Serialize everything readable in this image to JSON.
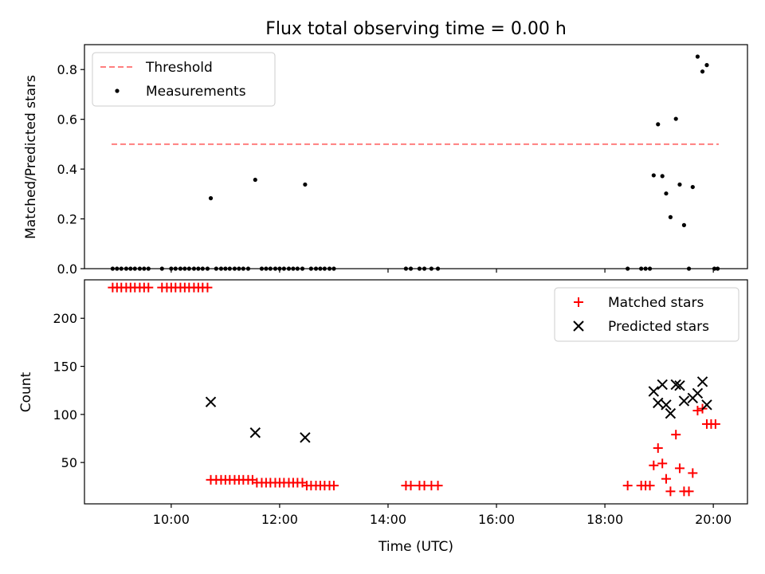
{
  "chart_data": [
    {
      "type": "scatter",
      "title": "Flux total observing time = 0.00 h",
      "xlabel": "",
      "ylabel": "Matched/Predicted stars",
      "xlim": [
        8.4,
        20.63
      ],
      "ylim": [
        0,
        0.9
      ],
      "yticks": [
        0.0,
        0.2,
        0.4,
        0.6,
        0.8
      ],
      "ytick_labels": [
        "0.0",
        "0.2",
        "0.4",
        "0.6",
        "0.8"
      ],
      "legend_position": "top-left",
      "legend": [
        "Threshold",
        "Measurements"
      ],
      "threshold": {
        "name": "Threshold",
        "value": 0.5,
        "x_range": [
          8.9,
          20.1
        ],
        "color": "#ff7f7f",
        "style": "dashed"
      },
      "series": [
        {
          "name": "Measurements",
          "color": "#000000",
          "marker": "dot",
          "points": [
            [
              8.92,
              0
            ],
            [
              9.0,
              0
            ],
            [
              9.08,
              0
            ],
            [
              9.17,
              0
            ],
            [
              9.25,
              0
            ],
            [
              9.33,
              0
            ],
            [
              9.42,
              0
            ],
            [
              9.5,
              0
            ],
            [
              9.58,
              0
            ],
            [
              9.83,
              0
            ],
            [
              10.0,
              0
            ],
            [
              10.08,
              0
            ],
            [
              10.17,
              0
            ],
            [
              10.25,
              0
            ],
            [
              10.33,
              0
            ],
            [
              10.42,
              0
            ],
            [
              10.5,
              0
            ],
            [
              10.58,
              0
            ],
            [
              10.67,
              0
            ],
            [
              10.73,
              0.283
            ],
            [
              10.83,
              0
            ],
            [
              10.92,
              0
            ],
            [
              11.0,
              0
            ],
            [
              11.08,
              0
            ],
            [
              11.17,
              0
            ],
            [
              11.25,
              0
            ],
            [
              11.33,
              0
            ],
            [
              11.42,
              0
            ],
            [
              11.55,
              0.357
            ],
            [
              11.67,
              0
            ],
            [
              11.75,
              0
            ],
            [
              11.83,
              0
            ],
            [
              11.92,
              0
            ],
            [
              12.0,
              0
            ],
            [
              12.08,
              0
            ],
            [
              12.17,
              0
            ],
            [
              12.25,
              0
            ],
            [
              12.33,
              0
            ],
            [
              12.42,
              0
            ],
            [
              12.47,
              0.338
            ],
            [
              12.58,
              0
            ],
            [
              12.67,
              0
            ],
            [
              12.75,
              0
            ],
            [
              12.83,
              0
            ],
            [
              12.92,
              0
            ],
            [
              13.0,
              0
            ],
            [
              14.33,
              0
            ],
            [
              14.42,
              0
            ],
            [
              14.58,
              0
            ],
            [
              14.67,
              0
            ],
            [
              14.8,
              0
            ],
            [
              14.92,
              0
            ],
            [
              18.42,
              0
            ],
            [
              18.67,
              0
            ],
            [
              18.75,
              0
            ],
            [
              18.83,
              0
            ],
            [
              18.9,
              0.375
            ],
            [
              18.98,
              0.58
            ],
            [
              19.06,
              0.372
            ],
            [
              19.13,
              0.302
            ],
            [
              19.21,
              0.207
            ],
            [
              19.31,
              0.602
            ],
            [
              19.38,
              0.338
            ],
            [
              19.46,
              0.175
            ],
            [
              19.55,
              0.0
            ],
            [
              19.62,
              0.328
            ],
            [
              19.71,
              0.852
            ],
            [
              19.8,
              0.792
            ],
            [
              19.88,
              0.818
            ],
            [
              20.02,
              0.0
            ],
            [
              20.08,
              0.0
            ]
          ]
        }
      ]
    },
    {
      "type": "scatter",
      "title": "",
      "xlabel": "Time (UTC)",
      "ylabel": "Count",
      "xlim": [
        8.4,
        20.63
      ],
      "ylim": [
        7,
        240
      ],
      "yticks": [
        50,
        100,
        150,
        200
      ],
      "ytick_labels": [
        "50",
        "100",
        "150",
        "200"
      ],
      "xticks": [
        10,
        12,
        14,
        16,
        18,
        20
      ],
      "xtick_labels": [
        "10:00",
        "12:00",
        "14:00",
        "16:00",
        "18:00",
        "20:00"
      ],
      "legend_position": "top-right",
      "legend": [
        "Matched stars",
        "Predicted stars"
      ],
      "series": [
        {
          "name": "Matched stars",
          "color": "#ff0000",
          "marker": "plus",
          "points": [
            [
              8.92,
              232
            ],
            [
              9.0,
              232
            ],
            [
              9.08,
              232
            ],
            [
              9.17,
              232
            ],
            [
              9.25,
              232
            ],
            [
              9.33,
              232
            ],
            [
              9.42,
              232
            ],
            [
              9.5,
              232
            ],
            [
              9.58,
              232
            ],
            [
              9.83,
              232
            ],
            [
              9.92,
              232
            ],
            [
              10.0,
              232
            ],
            [
              10.08,
              232
            ],
            [
              10.17,
              232
            ],
            [
              10.25,
              232
            ],
            [
              10.33,
              232
            ],
            [
              10.42,
              232
            ],
            [
              10.5,
              232
            ],
            [
              10.58,
              232
            ],
            [
              10.67,
              232
            ],
            [
              10.73,
              32
            ],
            [
              10.83,
              32
            ],
            [
              10.92,
              32
            ],
            [
              11.0,
              32
            ],
            [
              11.08,
              32
            ],
            [
              11.17,
              32
            ],
            [
              11.25,
              32
            ],
            [
              11.33,
              32
            ],
            [
              11.42,
              32
            ],
            [
              11.5,
              32
            ],
            [
              11.58,
              29
            ],
            [
              11.67,
              29
            ],
            [
              11.75,
              29
            ],
            [
              11.83,
              29
            ],
            [
              11.92,
              29
            ],
            [
              12.0,
              29
            ],
            [
              12.08,
              29
            ],
            [
              12.17,
              29
            ],
            [
              12.25,
              29
            ],
            [
              12.33,
              29
            ],
            [
              12.42,
              29
            ],
            [
              12.5,
              26
            ],
            [
              12.58,
              26
            ],
            [
              12.67,
              26
            ],
            [
              12.75,
              26
            ],
            [
              12.83,
              26
            ],
            [
              12.92,
              26
            ],
            [
              13.0,
              26
            ],
            [
              14.33,
              26
            ],
            [
              14.42,
              26
            ],
            [
              14.58,
              26
            ],
            [
              14.67,
              26
            ],
            [
              14.8,
              26
            ],
            [
              14.92,
              26
            ],
            [
              18.42,
              26
            ],
            [
              18.67,
              26
            ],
            [
              18.75,
              26
            ],
            [
              18.83,
              26
            ],
            [
              18.9,
              47
            ],
            [
              18.98,
              65
            ],
            [
              19.06,
              49
            ],
            [
              19.13,
              33
            ],
            [
              19.21,
              20
            ],
            [
              19.31,
              79
            ],
            [
              19.38,
              44
            ],
            [
              19.46,
              20
            ],
            [
              19.55,
              20
            ],
            [
              19.62,
              39
            ],
            [
              19.71,
              104
            ],
            [
              19.8,
              106
            ],
            [
              19.88,
              90
            ],
            [
              19.96,
              90
            ],
            [
              20.04,
              90
            ]
          ]
        },
        {
          "name": "Predicted stars",
          "color": "#000000",
          "marker": "x",
          "points": [
            [
              10.73,
              113
            ],
            [
              11.55,
              81
            ],
            [
              12.47,
              76
            ],
            [
              18.9,
              124
            ],
            [
              18.98,
              112
            ],
            [
              19.06,
              131
            ],
            [
              19.13,
              110
            ],
            [
              19.21,
              101
            ],
            [
              19.31,
              131
            ],
            [
              19.38,
              130
            ],
            [
              19.46,
              114
            ],
            [
              19.62,
              117
            ],
            [
              19.71,
              122
            ],
            [
              19.8,
              134
            ],
            [
              19.88,
              110
            ]
          ]
        }
      ]
    }
  ]
}
